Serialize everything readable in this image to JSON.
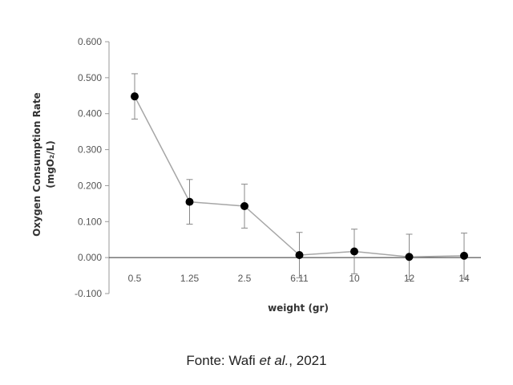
{
  "chart_data": {
    "type": "line",
    "categories": [
      "0.5",
      "1.25",
      "2.5",
      "6.11",
      "10",
      "12",
      "14"
    ],
    "values": [
      0.448,
      0.155,
      0.143,
      0.007,
      0.017,
      0.002,
      0.005
    ],
    "error_bars": [
      0.063,
      0.062,
      0.061,
      0.063,
      0.062,
      0.063,
      0.063
    ],
    "xlabel": "weight (gr)",
    "ylabel": "Oxygen Consumption Rate",
    "ylabel_units": "(mgO₂/L)",
    "ylim": [
      -0.1,
      0.6
    ],
    "yticks": [
      "-0.100",
      "0.000",
      "0.100",
      "0.200",
      "0.300",
      "0.400",
      "0.500",
      "0.600"
    ],
    "grid": false,
    "line_color": "#a6a6a6",
    "marker_color": "#000000"
  },
  "caption": {
    "prefix": "Fonte: Wafi ",
    "italic": "et al.",
    "suffix": ", 2021"
  }
}
